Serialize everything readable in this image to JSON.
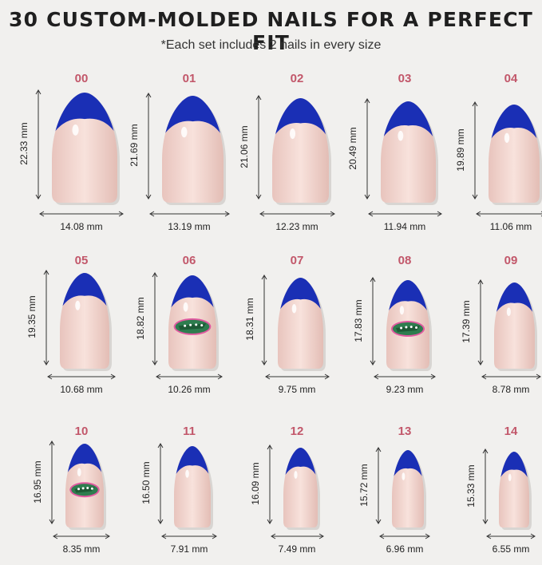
{
  "header": {
    "title": "30 CUSTOM-MOLDED NAILS FOR A PERFECT FIT",
    "subtitle": "*Each set includes 2 nails in every size"
  },
  "colors": {
    "tip": "#1a2fb5",
    "nail": "#f3d5cf",
    "label": "#c2576a",
    "logo_green": "#2e7d4f",
    "logo_border": "#e05aa0"
  },
  "nails": [
    {
      "size": "00",
      "length": "22.33 mm",
      "width": "14.08 mm",
      "logo": false
    },
    {
      "size": "01",
      "length": "21.69 mm",
      "width": "13.19 mm",
      "logo": false
    },
    {
      "size": "02",
      "length": "21.06 mm",
      "width": "12.23 mm",
      "logo": false
    },
    {
      "size": "03",
      "length": "20.49 mm",
      "width": "11.94 mm",
      "logo": false
    },
    {
      "size": "04",
      "length": "19.89 mm",
      "width": "11.06 mm",
      "logo": false
    },
    {
      "size": "05",
      "length": "19.35 mm",
      "width": "10.68 mm",
      "logo": false
    },
    {
      "size": "06",
      "length": "18.82 mm",
      "width": "10.26 mm",
      "logo": true
    },
    {
      "size": "07",
      "length": "18.31 mm",
      "width": "9.75 mm",
      "logo": false
    },
    {
      "size": "08",
      "length": "17.83 mm",
      "width": "9.23 mm",
      "logo": true
    },
    {
      "size": "09",
      "length": "17.39 mm",
      "width": "8.78 mm",
      "logo": false
    },
    {
      "size": "10",
      "length": "16.95 mm",
      "width": "8.35 mm",
      "logo": true
    },
    {
      "size": "11",
      "length": "16.50 mm",
      "width": "7.91 mm",
      "logo": false
    },
    {
      "size": "12",
      "length": "16.09 mm",
      "width": "7.49 mm",
      "logo": false
    },
    {
      "size": "13",
      "length": "15.72 mm",
      "width": "6.96 mm",
      "logo": false
    },
    {
      "size": "14",
      "length": "15.33 mm",
      "width": "6.55 mm",
      "logo": false
    }
  ]
}
